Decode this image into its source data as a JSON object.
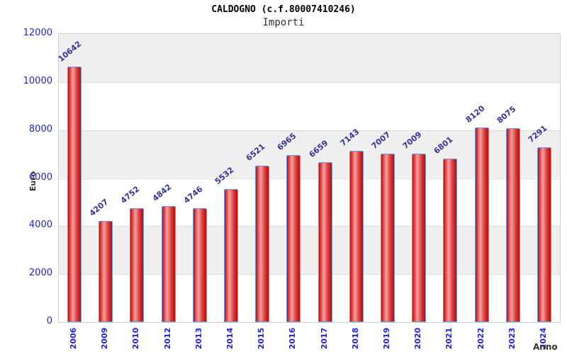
{
  "header": {
    "title": "CALDOGNO (c.f.80007410246)",
    "subtitle": "Importi"
  },
  "chart_data": {
    "type": "bar",
    "title": "CALDOGNO (c.f.80007410246)",
    "subtitle": "Importi",
    "xlabel": "Anno",
    "ylabel": "Euro",
    "categories": [
      "2006",
      "2009",
      "2010",
      "2012",
      "2013",
      "2014",
      "2015",
      "2016",
      "2017",
      "2018",
      "2019",
      "2020",
      "2021",
      "2022",
      "2023",
      "2024"
    ],
    "values": [
      10642,
      4207,
      4752,
      4842,
      4746,
      5532,
      6521,
      6965,
      6659,
      7143,
      7007,
      7009,
      6801,
      8120,
      8075,
      7291
    ],
    "ylim": [
      0,
      12000
    ],
    "yticks": [
      0,
      2000,
      4000,
      6000,
      8000,
      10000,
      12000
    ],
    "grid": "alternating horizontal bands, gray from 10000-12000, 6000-8000, 2000-4000",
    "legend": "none",
    "value_labels": "above each bar, rotated diagonally",
    "x_tick_labels": "rotated 90deg, reading bottom to top",
    "colors": {
      "bar_fill_dark": "#b80d0d",
      "bar_fill_mid": "#d83838",
      "bar_fill_highlight": "#f5a0a0",
      "bar_border": "#6b9ce8",
      "tick_label": "#2222dd",
      "value_label": "#333399",
      "axis_title": "#333333",
      "band_gray": "#efefef",
      "band_white": "#ffffff",
      "grid_line": "#dcdcdc",
      "plot_border": "#cfcfcf",
      "title": "#000000",
      "subtitle": "#333333"
    }
  }
}
